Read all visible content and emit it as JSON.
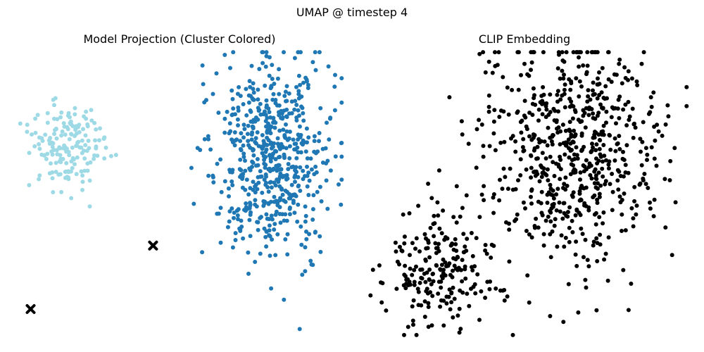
{
  "figure": {
    "suptitle": "UMAP @ timestep 4"
  },
  "colors": {
    "cluster_0": "#9edae5",
    "cluster_1": "#1f77b4",
    "clip": "#000000",
    "centroid": "#000000"
  },
  "chart_data": [
    {
      "type": "scatter",
      "title": "Model Projection (Cluster Colored)",
      "axes_visible": false,
      "xlim": [
        0,
        1
      ],
      "ylim": [
        0,
        1
      ],
      "clusters": [
        {
          "name": "cluster_0",
          "color": "#9edae5",
          "center": [
            0.16,
            0.67
          ],
          "spread": [
            0.06,
            0.08
          ],
          "count": 170
        },
        {
          "name": "cluster_1",
          "color": "#1f77b4",
          "center": [
            0.78,
            0.62
          ],
          "spread": [
            0.09,
            0.18
          ],
          "count": 600
        }
      ],
      "centroids": [
        [
          0.05,
          0.1
        ],
        [
          0.42,
          0.32
        ]
      ]
    },
    {
      "type": "scatter",
      "title": "CLIP Embedding",
      "axes_visible": false,
      "xlim": [
        0,
        1
      ],
      "ylim": [
        0,
        1
      ],
      "clusters": [
        {
          "name": "clip_a",
          "color": "#000000",
          "center": [
            0.24,
            0.24
          ],
          "spread": [
            0.09,
            0.1
          ],
          "count": 220
        },
        {
          "name": "clip_b",
          "color": "#000000",
          "center": [
            0.65,
            0.65
          ],
          "spread": [
            0.13,
            0.2
          ],
          "count": 650
        }
      ]
    }
  ]
}
